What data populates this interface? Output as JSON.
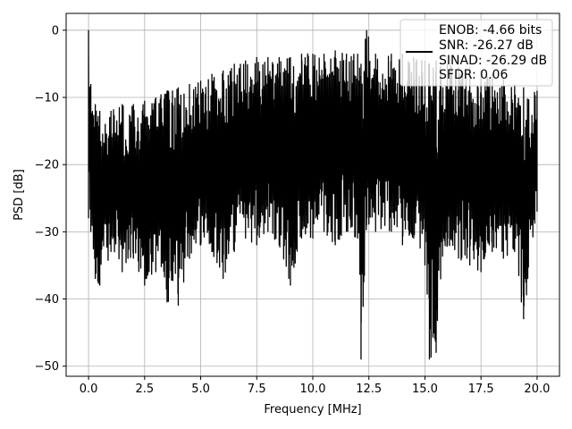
{
  "chart_data": {
    "type": "line",
    "title": "",
    "xlabel": "Frequency [MHz]",
    "ylabel": "PSD [dB]",
    "xlim": [
      -1.0,
      21.0
    ],
    "ylim": [
      -51.5,
      2.5
    ],
    "xticks": [
      0.0,
      2.5,
      5.0,
      7.5,
      10.0,
      12.5,
      15.0,
      17.5,
      20.0
    ],
    "xtick_labels": [
      "0.0",
      "2.5",
      "5.0",
      "7.5",
      "10.0",
      "12.5",
      "15.0",
      "17.5",
      "20.0"
    ],
    "yticks": [
      0,
      -10,
      -20,
      -30,
      -40,
      -50
    ],
    "ytick_labels": [
      "0",
      "−10",
      "−20",
      "−30",
      "−40",
      "−50"
    ],
    "grid": true,
    "legend_position": "top-right",
    "series_color": "#000000",
    "legend_lines": [
      "ENOB: -4.66 bits",
      "SNR: -26.27 dB",
      "SINAD: -26.29 dB",
      "SFDR: 0.06"
    ],
    "series": [
      {
        "name": "ENOB: -4.66 bits",
        "x_range": [
          0.0,
          20.0
        ],
        "envelope_points": [
          [
            0.0,
            0.0,
            -28.0
          ],
          [
            0.1,
            -8.0,
            -30.0
          ],
          [
            0.3,
            -11.0,
            -37.0
          ],
          [
            0.5,
            -12.0,
            -38.0
          ],
          [
            1.0,
            -12.0,
            -33.0
          ],
          [
            1.5,
            -11.0,
            -36.0
          ],
          [
            2.0,
            -11.0,
            -34.0
          ],
          [
            2.5,
            -10.5,
            -38.0
          ],
          [
            3.0,
            -10.0,
            -36.0
          ],
          [
            3.5,
            -9.0,
            -40.5
          ],
          [
            4.0,
            -8.5,
            -41.0
          ],
          [
            4.5,
            -8.0,
            -34.0
          ],
          [
            5.0,
            -7.5,
            -32.0
          ],
          [
            5.5,
            -6.5,
            -33.0
          ],
          [
            6.0,
            -6.0,
            -37.0
          ],
          [
            6.5,
            -5.0,
            -33.0
          ],
          [
            7.0,
            -4.5,
            -31.0
          ],
          [
            7.5,
            -4.0,
            -32.0
          ],
          [
            8.0,
            -4.0,
            -30.0
          ],
          [
            8.5,
            -4.0,
            -32.0
          ],
          [
            9.0,
            -4.0,
            -38.0
          ],
          [
            9.5,
            -3.5,
            -31.0
          ],
          [
            10.0,
            -3.5,
            -31.0
          ],
          [
            10.5,
            -3.5,
            -30.0
          ],
          [
            11.0,
            -3.0,
            -32.0
          ],
          [
            11.5,
            -3.5,
            -30.0
          ],
          [
            12.0,
            -3.5,
            -31.0
          ],
          [
            12.15,
            -5.0,
            -49.0
          ],
          [
            12.4,
            0.0,
            -29.0
          ],
          [
            12.8,
            -3.5,
            -30.0
          ],
          [
            13.5,
            -3.5,
            -30.0
          ],
          [
            14.0,
            -3.5,
            -32.0
          ],
          [
            14.5,
            -4.0,
            -31.0
          ],
          [
            15.0,
            -4.5,
            -35.0
          ],
          [
            15.2,
            -5.0,
            -49.0
          ],
          [
            15.5,
            -4.5,
            -48.0
          ],
          [
            16.0,
            -5.0,
            -32.0
          ],
          [
            16.5,
            -5.5,
            -34.0
          ],
          [
            17.0,
            -5.5,
            -35.0
          ],
          [
            17.5,
            -6.0,
            -36.0
          ],
          [
            18.0,
            -6.5,
            -33.0
          ],
          [
            18.5,
            -7.0,
            -34.0
          ],
          [
            19.0,
            -8.0,
            -33.0
          ],
          [
            19.4,
            -8.5,
            -43.0
          ],
          [
            20.0,
            -9.0,
            -27.0
          ]
        ]
      }
    ]
  }
}
